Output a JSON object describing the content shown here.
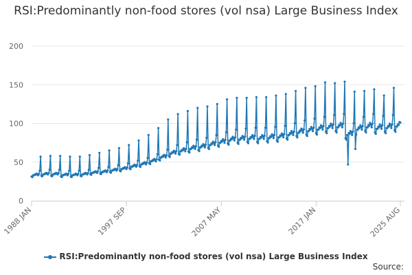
{
  "chart_data": {
    "type": "line",
    "title": "RSI:Predominantly non-food stores (vol nsa) Large Business Index",
    "series_name": "RSI:Predominantly non-food stores (vol nsa) Large Business Index",
    "source_label": "Source:",
    "xlabel": "",
    "ylabel": "",
    "ylim": [
      0,
      200
    ],
    "y_ticks": [
      0,
      50,
      100,
      150,
      200
    ],
    "x_start": "1988 JAN",
    "x_end": "2025 AUG",
    "x_ticks": [
      {
        "label": "1988 JAN",
        "index": 0
      },
      {
        "label": "1997 SEP",
        "index": 116
      },
      {
        "label": "2007 MAY",
        "index": 232
      },
      {
        "label": "2017 JAN",
        "index": 348
      },
      {
        "label": "2025 AUG",
        "index": 451
      }
    ],
    "color": "#1f77b4",
    "annual_base_values": [
      [
        1988,
        33
      ],
      [
        1989,
        34
      ],
      [
        1990,
        34
      ],
      [
        1991,
        33
      ],
      [
        1992,
        33
      ],
      [
        1993,
        34
      ],
      [
        1994,
        36
      ],
      [
        1995,
        37
      ],
      [
        1996,
        39
      ],
      [
        1997,
        41
      ],
      [
        1998,
        44
      ],
      [
        1999,
        47
      ],
      [
        2000,
        51
      ],
      [
        2001,
        56
      ],
      [
        2002,
        61
      ],
      [
        2003,
        64
      ],
      [
        2004,
        67
      ],
      [
        2005,
        69
      ],
      [
        2006,
        72
      ],
      [
        2007,
        75
      ],
      [
        2008,
        78
      ],
      [
        2009,
        79
      ],
      [
        2010,
        80
      ],
      [
        2011,
        80
      ],
      [
        2012,
        81
      ],
      [
        2013,
        82
      ],
      [
        2014,
        85
      ],
      [
        2015,
        88
      ],
      [
        2016,
        90
      ],
      [
        2017,
        92
      ],
      [
        2018,
        94
      ],
      [
        2019,
        95
      ],
      [
        2020,
        85
      ],
      [
        2021,
        92
      ],
      [
        2022,
        95
      ],
      [
        2023,
        93
      ],
      [
        2024,
        94
      ],
      [
        2025,
        96
      ]
    ],
    "december_peaks": [
      [
        1988,
        57
      ],
      [
        1989,
        58
      ],
      [
        1990,
        58
      ],
      [
        1991,
        57
      ],
      [
        1992,
        57
      ],
      [
        1993,
        59
      ],
      [
        1994,
        62
      ],
      [
        1995,
        65
      ],
      [
        1996,
        68
      ],
      [
        1997,
        72
      ],
      [
        1998,
        78
      ],
      [
        1999,
        85
      ],
      [
        2000,
        94
      ],
      [
        2001,
        105
      ],
      [
        2002,
        112
      ],
      [
        2003,
        116
      ],
      [
        2004,
        120
      ],
      [
        2005,
        122
      ],
      [
        2006,
        125
      ],
      [
        2007,
        131
      ],
      [
        2008,
        133
      ],
      [
        2009,
        133
      ],
      [
        2010,
        134
      ],
      [
        2011,
        134
      ],
      [
        2012,
        136
      ],
      [
        2013,
        138
      ],
      [
        2014,
        142
      ],
      [
        2015,
        146
      ],
      [
        2016,
        148
      ],
      [
        2017,
        153
      ],
      [
        2018,
        152
      ],
      [
        2019,
        154
      ],
      [
        2020,
        141
      ],
      [
        2021,
        142
      ],
      [
        2022,
        144
      ],
      [
        2023,
        136
      ],
      [
        2024,
        146
      ]
    ],
    "notable_points": [
      {
        "date": "2020 APR",
        "value": 47
      },
      {
        "date": "2021 JAN",
        "value": 67
      },
      {
        "date": "2025 AUG",
        "value": 101
      }
    ]
  }
}
